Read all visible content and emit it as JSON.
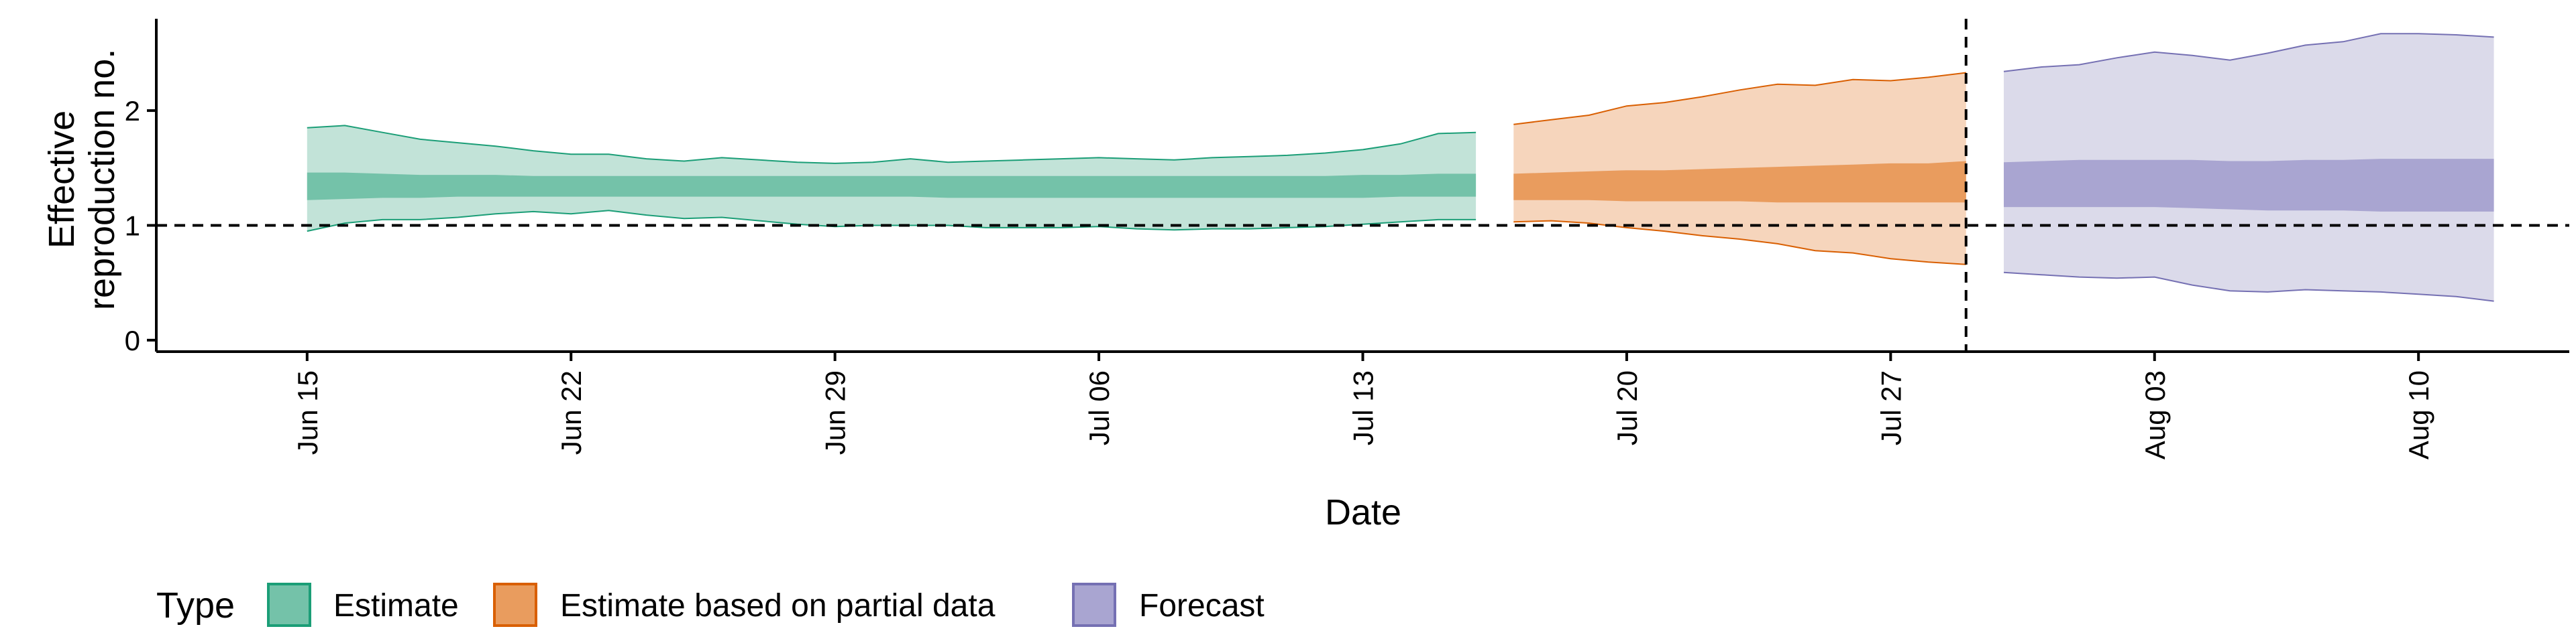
{
  "chart_data": {
    "type": "area",
    "xlabel": "Date",
    "ylabel_lines": [
      "Effective",
      "reproduction no."
    ],
    "ylim": [
      -0.1,
      2.8
    ],
    "y_ticks": [
      0,
      1,
      2
    ],
    "x_ticks": [
      "2020-06-15",
      "2020-06-22",
      "2020-06-29",
      "2020-07-06",
      "2020-07-13",
      "2020-07-20",
      "2020-07-27",
      "2020-08-03",
      "2020-08-10"
    ],
    "x_tick_labels": [
      "Jun 15",
      "Jun 22",
      "Jun 29",
      "Jul 06",
      "Jul 13",
      "Jul 20",
      "Jul 27",
      "Aug 03",
      "Aug 10"
    ],
    "xlim": [
      "2020-06-11",
      "2020-08-14"
    ],
    "reference_line_y": 1,
    "vertical_line_date": "2020-07-29",
    "legend": {
      "title": "Type",
      "position": "bottom-left"
    },
    "series": [
      {
        "name": "Estimate",
        "color": "#1b9e77",
        "fill_outer": "#c2e3d8",
        "fill_inner": "#74c2a9",
        "dates": [
          "2020-06-15",
          "2020-06-16",
          "2020-06-17",
          "2020-06-18",
          "2020-06-19",
          "2020-06-20",
          "2020-06-21",
          "2020-06-22",
          "2020-06-23",
          "2020-06-24",
          "2020-06-25",
          "2020-06-26",
          "2020-06-27",
          "2020-06-28",
          "2020-06-29",
          "2020-06-30",
          "2020-07-01",
          "2020-07-02",
          "2020-07-03",
          "2020-07-04",
          "2020-07-05",
          "2020-07-06",
          "2020-07-07",
          "2020-07-08",
          "2020-07-09",
          "2020-07-10",
          "2020-07-11",
          "2020-07-12",
          "2020-07-13",
          "2020-07-14",
          "2020-07-15",
          "2020-07-16"
        ],
        "upper90": [
          1.85,
          1.87,
          1.81,
          1.75,
          1.72,
          1.69,
          1.65,
          1.62,
          1.62,
          1.58,
          1.56,
          1.59,
          1.57,
          1.55,
          1.54,
          1.55,
          1.58,
          1.55,
          1.56,
          1.57,
          1.58,
          1.59,
          1.58,
          1.57,
          1.59,
          1.6,
          1.61,
          1.63,
          1.66,
          1.71,
          1.8,
          1.81
        ],
        "lower90": [
          0.95,
          1.02,
          1.05,
          1.05,
          1.07,
          1.1,
          1.12,
          1.1,
          1.13,
          1.09,
          1.06,
          1.07,
          1.04,
          1.01,
          0.99,
          1.0,
          1.0,
          1.0,
          0.98,
          0.98,
          0.98,
          0.99,
          0.97,
          0.96,
          0.97,
          0.97,
          0.98,
          0.99,
          1.01,
          1.03,
          1.05,
          1.05
        ],
        "upper50": [
          1.46,
          1.46,
          1.45,
          1.44,
          1.44,
          1.44,
          1.43,
          1.43,
          1.43,
          1.43,
          1.43,
          1.43,
          1.43,
          1.43,
          1.43,
          1.43,
          1.43,
          1.43,
          1.43,
          1.43,
          1.43,
          1.43,
          1.43,
          1.43,
          1.43,
          1.43,
          1.43,
          1.43,
          1.44,
          1.44,
          1.45,
          1.45
        ],
        "lower50": [
          1.22,
          1.23,
          1.24,
          1.24,
          1.25,
          1.25,
          1.25,
          1.25,
          1.25,
          1.25,
          1.25,
          1.25,
          1.25,
          1.25,
          1.25,
          1.25,
          1.25,
          1.24,
          1.24,
          1.24,
          1.24,
          1.24,
          1.24,
          1.24,
          1.24,
          1.24,
          1.24,
          1.24,
          1.24,
          1.25,
          1.25,
          1.25
        ]
      },
      {
        "name": "Estimate based on partial data",
        "color": "#d95f02",
        "fill_outer": "#f6d5bc",
        "fill_inner": "#e99c5e",
        "dates": [
          "2020-07-17",
          "2020-07-18",
          "2020-07-19",
          "2020-07-20",
          "2020-07-21",
          "2020-07-22",
          "2020-07-23",
          "2020-07-24",
          "2020-07-25",
          "2020-07-26",
          "2020-07-27",
          "2020-07-28",
          "2020-07-29"
        ],
        "upper90": [
          1.88,
          1.92,
          1.96,
          2.04,
          2.07,
          2.12,
          2.18,
          2.23,
          2.22,
          2.27,
          2.26,
          2.29,
          2.33
        ],
        "lower90": [
          1.03,
          1.04,
          1.02,
          0.98,
          0.95,
          0.91,
          0.88,
          0.84,
          0.78,
          0.76,
          0.71,
          0.68,
          0.66
        ],
        "upper50": [
          1.45,
          1.46,
          1.47,
          1.48,
          1.48,
          1.49,
          1.5,
          1.51,
          1.52,
          1.53,
          1.54,
          1.54,
          1.56
        ],
        "lower50": [
          1.22,
          1.22,
          1.22,
          1.21,
          1.21,
          1.21,
          1.21,
          1.2,
          1.2,
          1.2,
          1.2,
          1.2,
          1.2
        ]
      },
      {
        "name": "Forecast",
        "color": "#7570b3",
        "fill_outer": "#dbdaea",
        "fill_inner": "#a9a5d1",
        "dates": [
          "2020-07-30",
          "2020-07-31",
          "2020-08-01",
          "2020-08-02",
          "2020-08-03",
          "2020-08-04",
          "2020-08-05",
          "2020-08-06",
          "2020-08-07",
          "2020-08-08",
          "2020-08-09",
          "2020-08-10",
          "2020-08-11",
          "2020-08-12"
        ],
        "upper90": [
          2.34,
          2.38,
          2.4,
          2.46,
          2.51,
          2.48,
          2.44,
          2.5,
          2.57,
          2.6,
          2.67,
          2.67,
          2.66,
          2.64
        ],
        "lower90": [
          0.59,
          0.57,
          0.55,
          0.54,
          0.55,
          0.48,
          0.43,
          0.42,
          0.44,
          0.43,
          0.42,
          0.4,
          0.38,
          0.34
        ],
        "upper50": [
          1.55,
          1.56,
          1.57,
          1.57,
          1.57,
          1.57,
          1.56,
          1.56,
          1.57,
          1.57,
          1.58,
          1.58,
          1.58,
          1.58
        ],
        "lower50": [
          1.16,
          1.16,
          1.16,
          1.16,
          1.16,
          1.15,
          1.14,
          1.13,
          1.13,
          1.13,
          1.12,
          1.12,
          1.12,
          1.12
        ]
      }
    ]
  }
}
